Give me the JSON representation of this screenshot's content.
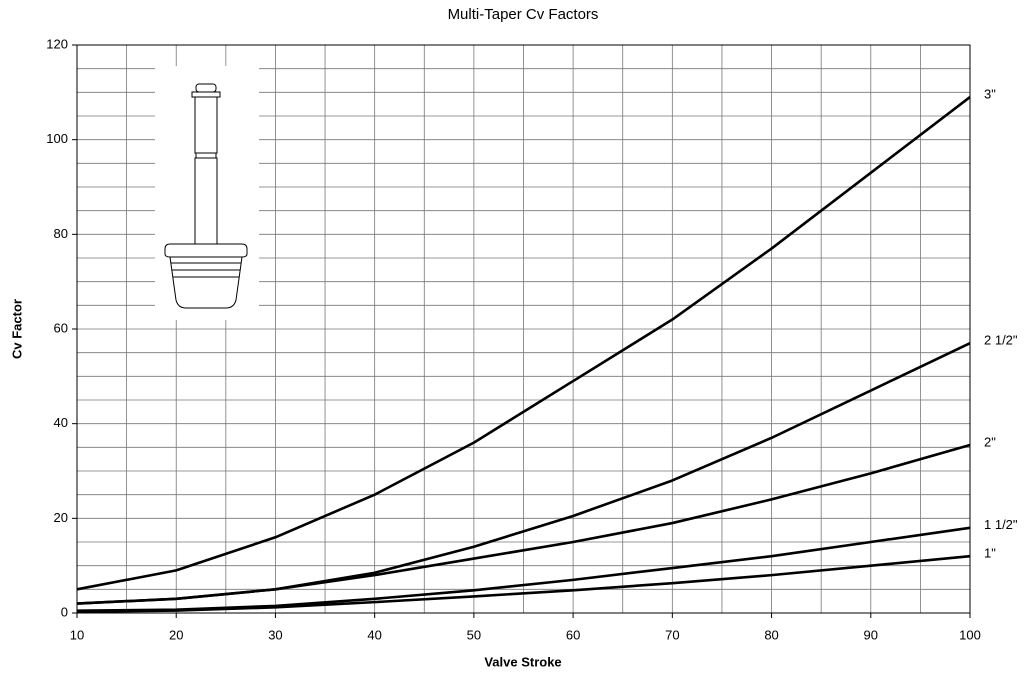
{
  "chart_data": {
    "type": "line",
    "title": "Multi-Taper Cv Factors",
    "x_label": "Valve Stroke",
    "y_label": "Cv Factor",
    "x": [
      10,
      20,
      30,
      40,
      50,
      60,
      70,
      80,
      90,
      100
    ],
    "series": [
      {
        "name": "3\"",
        "color": "#000000",
        "values": [
          5,
          9,
          16,
          25,
          36,
          49,
          62,
          77,
          93,
          109
        ]
      },
      {
        "name": "2 1/2\"",
        "color": "#000000",
        "values": [
          2,
          3,
          5,
          8.5,
          14,
          20.5,
          28,
          37,
          47,
          57
        ]
      },
      {
        "name": "2\"",
        "color": "#000000",
        "values": [
          2,
          3,
          5,
          8,
          11.5,
          15,
          19,
          24,
          29.5,
          35.5
        ]
      },
      {
        "name": "1 1/2\"",
        "color": "#000000",
        "values": [
          0.5,
          0.7,
          1.5,
          3,
          4.8,
          7,
          9.5,
          12,
          15,
          18
        ]
      },
      {
        "name": "1\"",
        "color": "#000000",
        "values": [
          0.3,
          0.5,
          1.2,
          2.3,
          3.5,
          4.8,
          6.3,
          8,
          10,
          12
        ]
      }
    ],
    "xlim": [
      10,
      100
    ],
    "xticks": [
      10,
      20,
      30,
      40,
      50,
      60,
      70,
      80,
      90,
      100
    ],
    "xminorticks": [
      15,
      25,
      35,
      45,
      55,
      65,
      75,
      85,
      95
    ],
    "ylim": [
      0,
      120
    ],
    "yticks": [
      0,
      20,
      40,
      60,
      80,
      100,
      120
    ],
    "yminorticks": [
      5,
      10,
      15,
      25,
      30,
      35,
      45,
      50,
      55,
      65,
      70,
      75,
      85,
      90,
      95,
      105,
      110,
      115
    ],
    "grid": true
  }
}
